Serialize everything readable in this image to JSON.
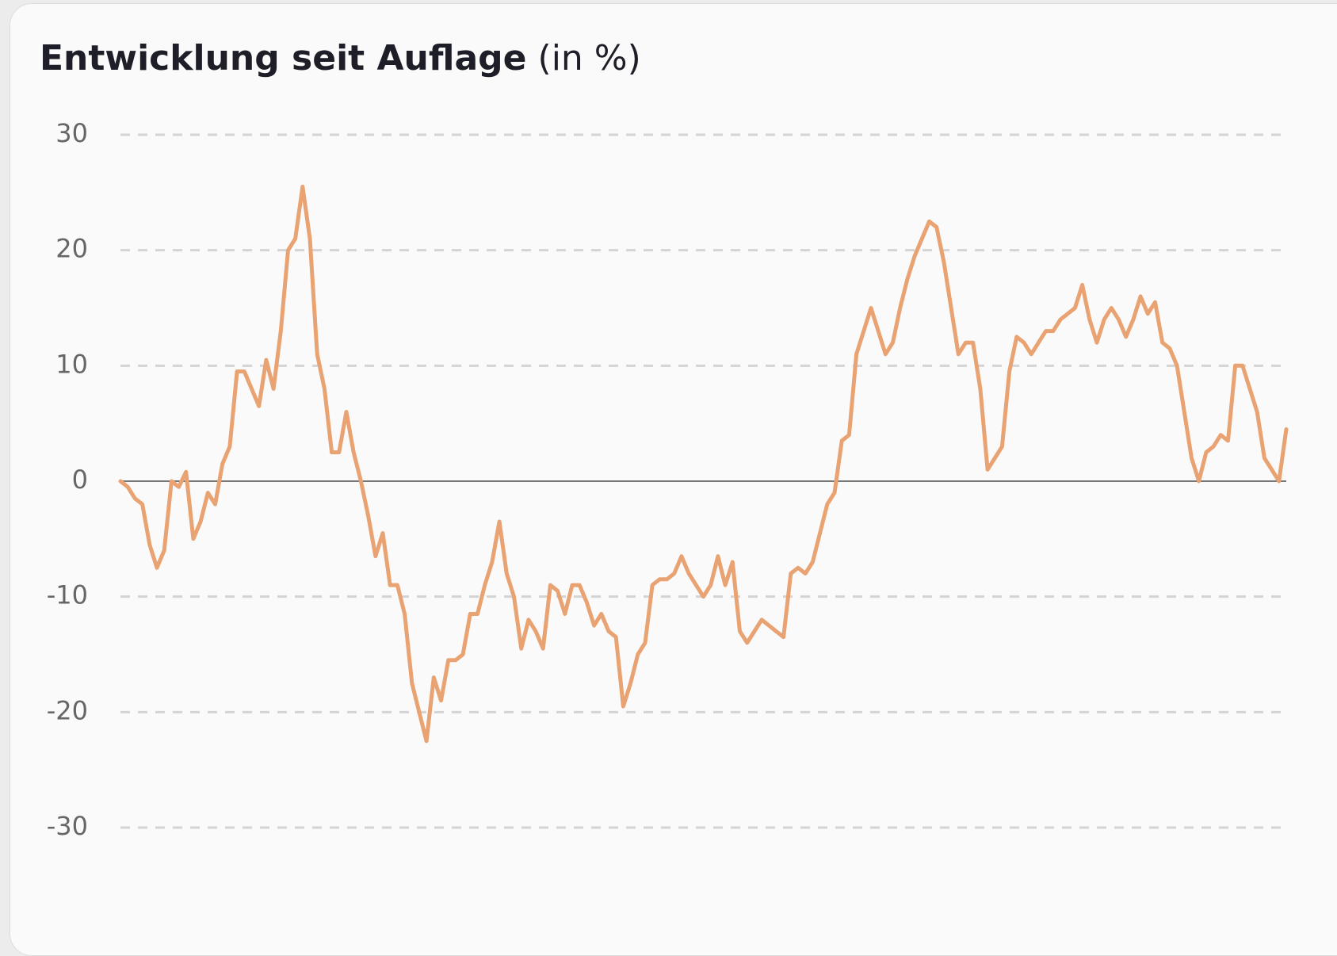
{
  "chart_data": {
    "type": "line",
    "title": "Entwicklung seit Auflage",
    "ylabel": "(in %)",
    "ylim": [
      -30,
      30
    ],
    "yticks": [
      30,
      20,
      10,
      0,
      -10,
      -20,
      -30
    ],
    "grid": true,
    "series": [
      {
        "color": "#e9a272",
        "values": [
          0,
          -0.5,
          -1.5,
          -2,
          -5.5,
          -7.5,
          -6,
          0,
          -0.5,
          0.8,
          -5,
          -3.5,
          -1,
          -2,
          1.5,
          3,
          9.5,
          9.5,
          8,
          6.5,
          10.5,
          8,
          13,
          20,
          21,
          25.5,
          21,
          11,
          8,
          2.5,
          2.5,
          6,
          2.5,
          0,
          -3,
          -6.5,
          -4.5,
          -9,
          -9,
          -11.5,
          -17.5,
          -20,
          -22.5,
          -17,
          -19,
          -15.5,
          -15.5,
          -15,
          -11.5,
          -11.5,
          -9,
          -7,
          -3.5,
          -8,
          -10,
          -14.5,
          -12,
          -13,
          -14.5,
          -9,
          -9.5,
          -11.5,
          -9,
          -9,
          -10.5,
          -12.5,
          -11.5,
          -13,
          -13.5,
          -19.5,
          -17.5,
          -15,
          -14,
          -9,
          -8.5,
          -8.5,
          -8,
          -6.5,
          -8,
          -9,
          -10,
          -9,
          -6.5,
          -9,
          -7,
          -13,
          -14,
          -13,
          -12,
          -12.5,
          -13,
          -13.5,
          -8,
          -7.5,
          -8,
          -7,
          -4.5,
          -2,
          -1,
          3.5,
          4,
          11,
          13,
          15,
          13,
          11,
          12,
          15,
          17.5,
          19.5,
          21,
          22.5,
          22,
          19,
          15,
          11,
          12,
          12,
          8,
          1,
          2,
          3,
          9.5,
          12.5,
          12,
          11,
          12,
          13,
          13,
          14,
          14.5,
          15,
          17,
          14,
          12,
          14,
          15,
          14,
          12.5,
          14,
          16,
          14.5,
          15.5,
          12,
          11.5,
          10,
          6,
          2,
          0,
          2.5,
          3,
          4,
          3.5,
          10,
          10,
          8,
          6,
          2,
          1,
          0,
          4.5
        ]
      }
    ]
  }
}
